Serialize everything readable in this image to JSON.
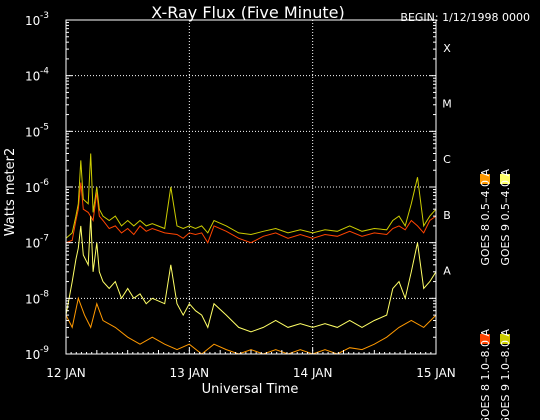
{
  "chart_data": {
    "type": "line",
    "title": "X-Ray Flux (Five Minute)",
    "begin_label": "BEGIN: 1/12/1998 0000",
    "xlabel": "Universal Time",
    "ylabel": "Watts meter2",
    "yscale": "log",
    "ylim": [
      1e-09,
      0.001
    ],
    "y_ticks": [
      {
        "base": "10",
        "exp": "-3",
        "value": 0.001
      },
      {
        "base": "10",
        "exp": "-4",
        "value": 0.0001
      },
      {
        "base": "10",
        "exp": "-5",
        "value": 1e-05
      },
      {
        "base": "10",
        "exp": "-6",
        "value": 1e-06
      },
      {
        "base": "10",
        "exp": "-7",
        "value": 1e-07
      },
      {
        "base": "10",
        "exp": "-8",
        "value": 1e-08
      },
      {
        "base": "10",
        "exp": "-9",
        "value": 1e-09
      }
    ],
    "x_ticks": [
      {
        "label": "12 JAN",
        "day": 0
      },
      {
        "label": "13 JAN",
        "day": 1
      },
      {
        "label": "14 JAN",
        "day": 2
      },
      {
        "label": "15 JAN",
        "day": 3
      }
    ],
    "xlim_days": [
      0,
      3
    ],
    "flare_classes": [
      {
        "label": "X",
        "value": 0.0001
      },
      {
        "label": "M",
        "value": 1e-05
      },
      {
        "label": "C",
        "value": 1e-06
      },
      {
        "label": "B",
        "value": 1e-07
      },
      {
        "label": "A",
        "value": 1e-08
      }
    ],
    "grid": true,
    "legend_position": "right-vertical",
    "series": [
      {
        "name": "GOES 8 1.0–8.0 A",
        "color": "#ff4400",
        "points": [
          [
            0,
            1e-07
          ],
          [
            0.05,
            1.1e-07
          ],
          [
            0.08,
            2.5e-07
          ],
          [
            0.1,
            4e-07
          ],
          [
            0.12,
            1.2e-06
          ],
          [
            0.14,
            4e-07
          ],
          [
            0.18,
            3.5e-07
          ],
          [
            0.22,
            2.5e-07
          ],
          [
            0.25,
            8e-07
          ],
          [
            0.27,
            3e-07
          ],
          [
            0.3,
            2.5e-07
          ],
          [
            0.35,
            1.8e-07
          ],
          [
            0.4,
            2e-07
          ],
          [
            0.45,
            1.5e-07
          ],
          [
            0.5,
            1.8e-07
          ],
          [
            0.55,
            1.4e-07
          ],
          [
            0.6,
            2e-07
          ],
          [
            0.65,
            1.6e-07
          ],
          [
            0.7,
            1.8e-07
          ],
          [
            0.8,
            1.5e-07
          ],
          [
            0.9,
            1.4e-07
          ],
          [
            0.95,
            1.2e-07
          ],
          [
            1.0,
            1.5e-07
          ],
          [
            1.05,
            1.4e-07
          ],
          [
            1.1,
            1.5e-07
          ],
          [
            1.15,
            1e-07
          ],
          [
            1.2,
            2e-07
          ],
          [
            1.3,
            1.6e-07
          ],
          [
            1.4,
            1.2e-07
          ],
          [
            1.5,
            1e-07
          ],
          [
            1.6,
            1.3e-07
          ],
          [
            1.7,
            1.5e-07
          ],
          [
            1.8,
            1.2e-07
          ],
          [
            1.9,
            1.4e-07
          ],
          [
            2.0,
            1.2e-07
          ],
          [
            2.1,
            1.4e-07
          ],
          [
            2.2,
            1.3e-07
          ],
          [
            2.3,
            1.6e-07
          ],
          [
            2.4,
            1.3e-07
          ],
          [
            2.5,
            1.5e-07
          ],
          [
            2.6,
            1.4e-07
          ],
          [
            2.65,
            1.8e-07
          ],
          [
            2.7,
            2e-07
          ],
          [
            2.75,
            1.7e-07
          ],
          [
            2.8,
            2.5e-07
          ],
          [
            2.85,
            2e-07
          ],
          [
            2.9,
            1.5e-07
          ],
          [
            2.95,
            2.5e-07
          ],
          [
            3.0,
            3e-07
          ]
        ]
      },
      {
        "name": "GOES 8 0.5–4.0 A",
        "color": "#ff9900",
        "points": [
          [
            0,
            5e-09
          ],
          [
            0.05,
            3e-09
          ],
          [
            0.1,
            1e-08
          ],
          [
            0.15,
            5e-09
          ],
          [
            0.2,
            3e-09
          ],
          [
            0.25,
            8e-09
          ],
          [
            0.3,
            4e-09
          ],
          [
            0.4,
            3e-09
          ],
          [
            0.5,
            2e-09
          ],
          [
            0.6,
            1.5e-09
          ],
          [
            0.7,
            2e-09
          ],
          [
            0.8,
            1.5e-09
          ],
          [
            0.9,
            1.2e-09
          ],
          [
            1.0,
            1.5e-09
          ],
          [
            1.1,
            1e-09
          ],
          [
            1.2,
            1.5e-09
          ],
          [
            1.3,
            1.2e-09
          ],
          [
            1.4,
            1e-09
          ],
          [
            1.5,
            1.2e-09
          ],
          [
            1.6,
            1e-09
          ],
          [
            1.7,
            1.2e-09
          ],
          [
            1.8,
            1e-09
          ],
          [
            1.9,
            1.2e-09
          ],
          [
            2.0,
            1e-09
          ],
          [
            2.1,
            1.2e-09
          ],
          [
            2.2,
            1e-09
          ],
          [
            2.3,
            1.3e-09
          ],
          [
            2.4,
            1.2e-09
          ],
          [
            2.5,
            1.5e-09
          ],
          [
            2.6,
            2e-09
          ],
          [
            2.7,
            3e-09
          ],
          [
            2.8,
            4e-09
          ],
          [
            2.9,
            3e-09
          ],
          [
            3.0,
            5e-09
          ]
        ]
      },
      {
        "name": "GOES 9 1.0–8.0 A",
        "color": "#cccc00",
        "points": [
          [
            0,
            1.2e-07
          ],
          [
            0.05,
            1.5e-07
          ],
          [
            0.08,
            3e-07
          ],
          [
            0.1,
            5e-07
          ],
          [
            0.12,
            3e-06
          ],
          [
            0.14,
            6e-07
          ],
          [
            0.18,
            5e-07
          ],
          [
            0.2,
            4e-06
          ],
          [
            0.22,
            3.5e-07
          ],
          [
            0.25,
            1e-06
          ],
          [
            0.27,
            4e-07
          ],
          [
            0.3,
            3e-07
          ],
          [
            0.35,
            2.5e-07
          ],
          [
            0.4,
            3e-07
          ],
          [
            0.45,
            2e-07
          ],
          [
            0.5,
            2.5e-07
          ],
          [
            0.55,
            2e-07
          ],
          [
            0.6,
            2.5e-07
          ],
          [
            0.65,
            2e-07
          ],
          [
            0.7,
            2.2e-07
          ],
          [
            0.8,
            1.8e-07
          ],
          [
            0.85,
            1e-06
          ],
          [
            0.9,
            2e-07
          ],
          [
            0.95,
            1.8e-07
          ],
          [
            1.0,
            2e-07
          ],
          [
            1.05,
            1.8e-07
          ],
          [
            1.1,
            2e-07
          ],
          [
            1.15,
            1.5e-07
          ],
          [
            1.2,
            2.5e-07
          ],
          [
            1.3,
            2e-07
          ],
          [
            1.4,
            1.5e-07
          ],
          [
            1.5,
            1.4e-07
          ],
          [
            1.6,
            1.6e-07
          ],
          [
            1.7,
            1.8e-07
          ],
          [
            1.8,
            1.5e-07
          ],
          [
            1.9,
            1.7e-07
          ],
          [
            2.0,
            1.5e-07
          ],
          [
            2.1,
            1.7e-07
          ],
          [
            2.2,
            1.6e-07
          ],
          [
            2.3,
            2e-07
          ],
          [
            2.4,
            1.6e-07
          ],
          [
            2.5,
            1.8e-07
          ],
          [
            2.6,
            1.7e-07
          ],
          [
            2.65,
            2.5e-07
          ],
          [
            2.7,
            3e-07
          ],
          [
            2.75,
            2e-07
          ],
          [
            2.8,
            5e-07
          ],
          [
            2.85,
            1.5e-06
          ],
          [
            2.9,
            2e-07
          ],
          [
            2.95,
            3e-07
          ],
          [
            3.0,
            4e-07
          ]
        ]
      },
      {
        "name": "GOES 9 0.5–4.0 A",
        "color": "#ffff66",
        "points": [
          [
            0,
            5e-09
          ],
          [
            0.05,
            2e-08
          ],
          [
            0.08,
            5e-08
          ],
          [
            0.1,
            8e-08
          ],
          [
            0.12,
            2e-07
          ],
          [
            0.14,
            6e-08
          ],
          [
            0.18,
            4e-08
          ],
          [
            0.2,
            3e-07
          ],
          [
            0.22,
            3e-08
          ],
          [
            0.25,
            1e-07
          ],
          [
            0.27,
            3e-08
          ],
          [
            0.3,
            2e-08
          ],
          [
            0.35,
            1.5e-08
          ],
          [
            0.4,
            2e-08
          ],
          [
            0.45,
            1e-08
          ],
          [
            0.5,
            1.5e-08
          ],
          [
            0.55,
            1e-08
          ],
          [
            0.6,
            1.2e-08
          ],
          [
            0.65,
            8e-09
          ],
          [
            0.7,
            1e-08
          ],
          [
            0.8,
            8e-09
          ],
          [
            0.85,
            4e-08
          ],
          [
            0.9,
            8e-09
          ],
          [
            0.95,
            5e-09
          ],
          [
            1.0,
            8e-09
          ],
          [
            1.05,
            6e-09
          ],
          [
            1.1,
            5e-09
          ],
          [
            1.15,
            3e-09
          ],
          [
            1.2,
            8e-09
          ],
          [
            1.3,
            5e-09
          ],
          [
            1.4,
            3e-09
          ],
          [
            1.5,
            2.5e-09
          ],
          [
            1.6,
            3e-09
          ],
          [
            1.7,
            4e-09
          ],
          [
            1.8,
            3e-09
          ],
          [
            1.9,
            3.5e-09
          ],
          [
            2.0,
            3e-09
          ],
          [
            2.1,
            3.5e-09
          ],
          [
            2.2,
            3e-09
          ],
          [
            2.3,
            4e-09
          ],
          [
            2.4,
            3e-09
          ],
          [
            2.5,
            4e-09
          ],
          [
            2.6,
            5e-09
          ],
          [
            2.65,
            1.5e-08
          ],
          [
            2.7,
            2e-08
          ],
          [
            2.75,
            1e-08
          ],
          [
            2.8,
            3e-08
          ],
          [
            2.85,
            1e-07
          ],
          [
            2.9,
            1.5e-08
          ],
          [
            2.95,
            2e-08
          ],
          [
            3.0,
            3e-08
          ]
        ]
      }
    ]
  }
}
